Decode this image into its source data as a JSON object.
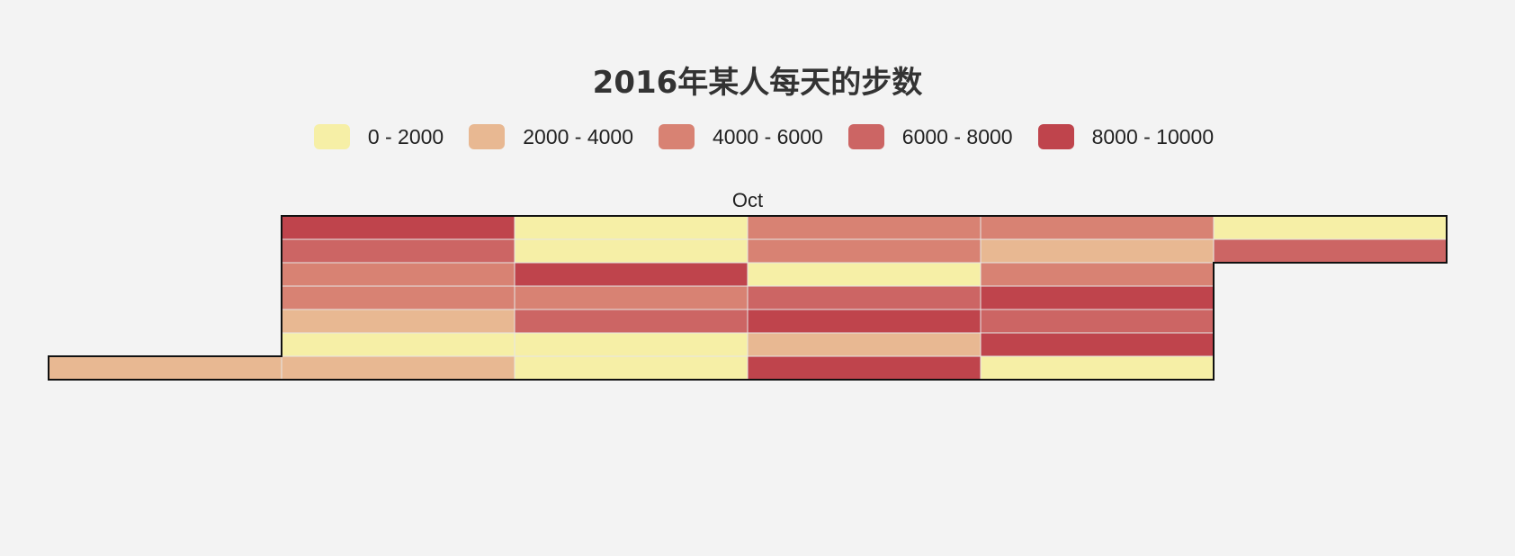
{
  "title": "2016年某人每天的步数",
  "legend": [
    {
      "label": "0 - 2000",
      "color": "#f6efa6"
    },
    {
      "label": "2000 - 4000",
      "color": "#e8b892"
    },
    {
      "label": "4000 - 6000",
      "color": "#d88273"
    },
    {
      "label": "6000 - 8000",
      "color": "#cc6564"
    },
    {
      "label": "8000 - 10000",
      "color": "#bf444c"
    }
  ],
  "chart_data": {
    "type": "heatmap",
    "title": "2016年某人每天的步数",
    "month_label": "Oct",
    "range": [
      "2016-10-01",
      "2016-10-31"
    ],
    "orient": "horizontal",
    "bins": [
      {
        "min": 0,
        "max": 2000,
        "label": "0 - 2000"
      },
      {
        "min": 2000,
        "max": 4000,
        "label": "2000 - 4000"
      },
      {
        "min": 4000,
        "max": 6000,
        "label": "4000 - 6000"
      },
      {
        "min": 6000,
        "max": 8000,
        "label": "6000 - 8000"
      },
      {
        "min": 8000,
        "max": 10000,
        "label": "8000 - 10000"
      }
    ],
    "days": [
      {
        "date": "2016-10-01",
        "bin": 1
      },
      {
        "date": "2016-10-02",
        "bin": 4
      },
      {
        "date": "2016-10-03",
        "bin": 3
      },
      {
        "date": "2016-10-04",
        "bin": 2
      },
      {
        "date": "2016-10-05",
        "bin": 2
      },
      {
        "date": "2016-10-06",
        "bin": 1
      },
      {
        "date": "2016-10-07",
        "bin": 0
      },
      {
        "date": "2016-10-08",
        "bin": 1
      },
      {
        "date": "2016-10-09",
        "bin": 0
      },
      {
        "date": "2016-10-10",
        "bin": 0
      },
      {
        "date": "2016-10-11",
        "bin": 4
      },
      {
        "date": "2016-10-12",
        "bin": 2
      },
      {
        "date": "2016-10-13",
        "bin": 3
      },
      {
        "date": "2016-10-14",
        "bin": 0
      },
      {
        "date": "2016-10-15",
        "bin": 0
      },
      {
        "date": "2016-10-16",
        "bin": 2
      },
      {
        "date": "2016-10-17",
        "bin": 2
      },
      {
        "date": "2016-10-18",
        "bin": 0
      },
      {
        "date": "2016-10-19",
        "bin": 3
      },
      {
        "date": "2016-10-20",
        "bin": 4
      },
      {
        "date": "2016-10-21",
        "bin": 1
      },
      {
        "date": "2016-10-22",
        "bin": 4
      },
      {
        "date": "2016-10-23",
        "bin": 2
      },
      {
        "date": "2016-10-24",
        "bin": 1
      },
      {
        "date": "2016-10-25",
        "bin": 2
      },
      {
        "date": "2016-10-26",
        "bin": 4
      },
      {
        "date": "2016-10-27",
        "bin": 3
      },
      {
        "date": "2016-10-28",
        "bin": 4
      },
      {
        "date": "2016-10-29",
        "bin": 0
      },
      {
        "date": "2016-10-30",
        "bin": 0
      },
      {
        "date": "2016-10-31",
        "bin": 3
      }
    ]
  }
}
